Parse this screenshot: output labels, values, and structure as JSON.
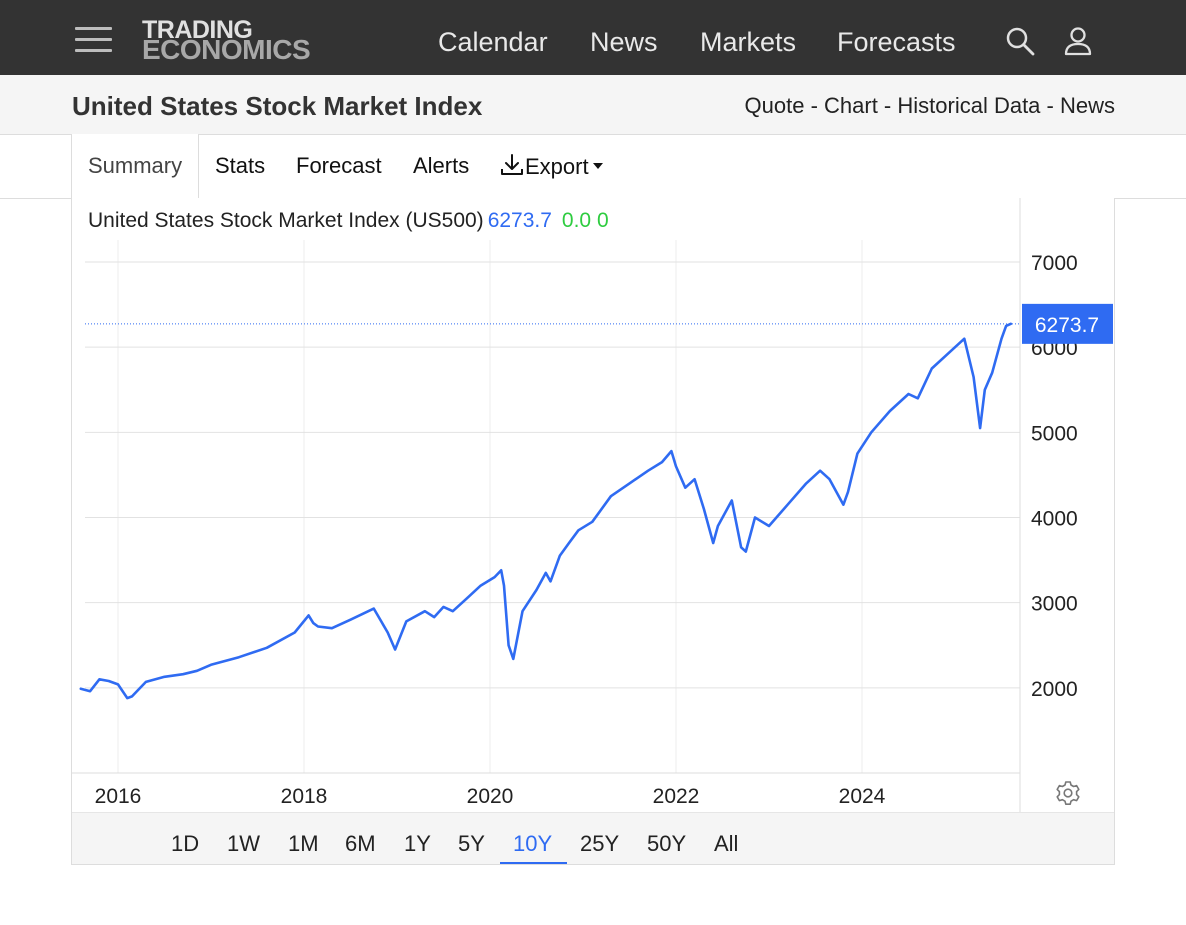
{
  "nav": {
    "logo_line1": "TRADING",
    "logo_line2": "ECONOMICS",
    "links": [
      "Calendar",
      "News",
      "Markets",
      "Forecasts"
    ],
    "icons": [
      "menu-icon",
      "search-icon",
      "user-icon"
    ]
  },
  "header": {
    "title": "United States Stock Market Index",
    "quicklinks": [
      "Quote",
      "Chart",
      "Historical Data",
      "News"
    ],
    "separator": " - "
  },
  "tabs": {
    "items": [
      "Summary",
      "Stats",
      "Forecast",
      "Alerts",
      "Export"
    ],
    "active": "Summary"
  },
  "legend": {
    "name": "United States Stock Market Index (US500)",
    "price": "6273.7",
    "change": "0.0 0"
  },
  "range": {
    "options": [
      "1D",
      "1W",
      "1M",
      "6M",
      "1Y",
      "5Y",
      "10Y",
      "25Y",
      "50Y",
      "All"
    ],
    "active": "10Y"
  },
  "colors": {
    "line": "#2f6bf2",
    "nav_bg": "#333333",
    "positive": "#2ecc40"
  },
  "chart_data": {
    "type": "line",
    "series": [
      {
        "name": "US500",
        "x": [
          2015.6,
          2015.7,
          2015.8,
          2015.9,
          2016.0,
          2016.1,
          2016.15,
          2016.3,
          2016.5,
          2016.7,
          2016.85,
          2017.0,
          2017.3,
          2017.6,
          2017.9,
          2018.05,
          2018.1,
          2018.15,
          2018.3,
          2018.5,
          2018.75,
          2018.9,
          2018.98,
          2019.1,
          2019.3,
          2019.4,
          2019.5,
          2019.6,
          2019.75,
          2019.9,
          2020.05,
          2020.12,
          2020.15,
          2020.2,
          2020.25,
          2020.35,
          2020.5,
          2020.6,
          2020.65,
          2020.75,
          2020.85,
          2020.95,
          2021.1,
          2021.3,
          2021.5,
          2021.7,
          2021.85,
          2021.95,
          2022.0,
          2022.1,
          2022.2,
          2022.3,
          2022.4,
          2022.45,
          2022.6,
          2022.7,
          2022.75,
          2022.85,
          2023.0,
          2023.2,
          2023.4,
          2023.55,
          2023.65,
          2023.8,
          2023.85,
          2023.95,
          2024.1,
          2024.3,
          2024.5,
          2024.6,
          2024.75,
          2024.95,
          2025.1,
          2025.2,
          2025.27,
          2025.32,
          2025.4,
          2025.5,
          2025.55,
          2025.6
        ],
        "values": [
          1990,
          1960,
          2100,
          2080,
          2040,
          1880,
          1900,
          2070,
          2130,
          2160,
          2200,
          2270,
          2360,
          2470,
          2650,
          2850,
          2760,
          2720,
          2700,
          2800,
          2930,
          2650,
          2450,
          2780,
          2900,
          2830,
          2950,
          2900,
          3050,
          3200,
          3300,
          3380,
          3200,
          2500,
          2340,
          2900,
          3150,
          3350,
          3250,
          3550,
          3700,
          3850,
          3950,
          4250,
          4400,
          4550,
          4650,
          4780,
          4600,
          4350,
          4450,
          4100,
          3700,
          3900,
          4200,
          3650,
          3600,
          4000,
          3900,
          4150,
          4400,
          4550,
          4450,
          4150,
          4300,
          4750,
          5000,
          5250,
          5450,
          5400,
          5750,
          5950,
          6100,
          5650,
          5050,
          5500,
          5700,
          6100,
          6250,
          6274
        ]
      }
    ],
    "last_value": 6273.7,
    "ylim": [
      1000,
      7000
    ],
    "yticks": [
      2000,
      3000,
      4000,
      5000,
      6000,
      7000
    ],
    "xlim": [
      2015.6,
      2025.67
    ],
    "xticks": [
      2016,
      2018,
      2020,
      2022,
      2024
    ],
    "grid": true
  }
}
